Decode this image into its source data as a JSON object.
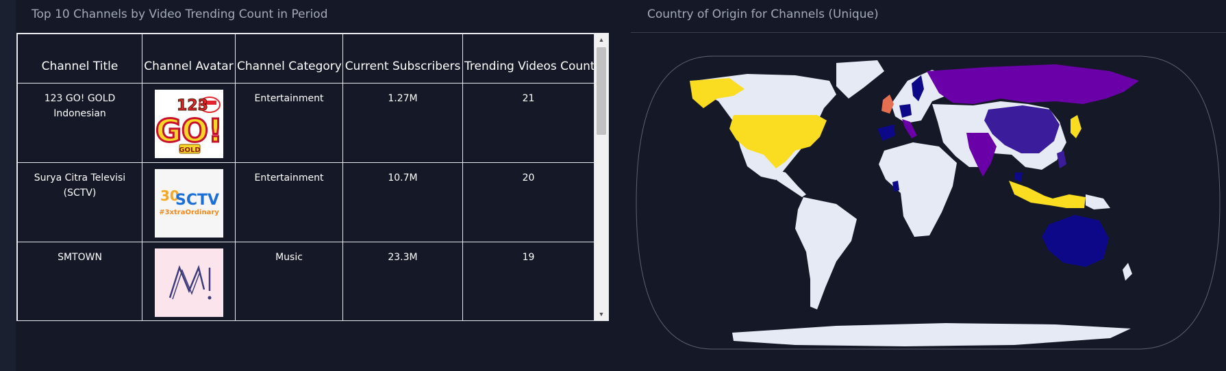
{
  "left_panel": {
    "title": "Top 10 Channels by Video Trending Count in Period",
    "columns": [
      "Channel Title",
      "Channel Avatar",
      "Channel Category",
      "Current Subscribers",
      "Trending Videos Count"
    ],
    "rows": [
      {
        "title": "123 GO! GOLD Indonesian",
        "category": "Entertainment",
        "subscribers": "1.27M",
        "trending": "21",
        "avatar": {
          "icon": "123-go-gold-logo",
          "text_top": "123",
          "text_main": "GO!",
          "text_badge": "GOLD",
          "colors": [
            "#f6d627",
            "#e4232c",
            "#ffffff"
          ]
        }
      },
      {
        "title": "Surya Citra Televisi (SCTV)",
        "category": "Entertainment",
        "subscribers": "10.7M",
        "trending": "20",
        "avatar": {
          "icon": "sctv-logo",
          "text_top": "30",
          "text_main": "SCTV",
          "text_sub": "#3xtraOrdinary",
          "colors": [
            "#f5a623",
            "#1d6fd8",
            "#ffffff"
          ]
        }
      },
      {
        "title": "SMTOWN",
        "category": "Music",
        "subscribers": "23.3M",
        "trending": "19",
        "avatar": {
          "icon": "smtown-logo",
          "colors": [
            "#fce4ec",
            "#3c3a78"
          ]
        }
      }
    ]
  },
  "right_panel": {
    "title": "Country of Origin for Channels (Unique)",
    "map": {
      "projection": "natural-earth",
      "colors": {
        "default_land": "#e6eaf4",
        "high": "#fadd21",
        "mid_high": "#f0f921",
        "mid": "#6a00a8",
        "mid_low": "#3b1d9c",
        "low": "#0d0887",
        "uk": "#e76f51",
        "ocean": "#151927",
        "frame": "#5c6170"
      },
      "highlighted_regions": [
        {
          "icon": "united-states-region",
          "level": "high"
        },
        {
          "icon": "alaska-region",
          "level": "high"
        },
        {
          "icon": "indonesia-region",
          "level": "high"
        },
        {
          "icon": "japan-region",
          "level": "high"
        },
        {
          "icon": "russia-region",
          "level": "mid"
        },
        {
          "icon": "china-region",
          "level": "mid_low"
        },
        {
          "icon": "india-region",
          "level": "mid"
        },
        {
          "icon": "australia-region",
          "level": "low"
        },
        {
          "icon": "united-kingdom-region",
          "level": "uk"
        },
        {
          "icon": "spain-region",
          "level": "low"
        },
        {
          "icon": "italy-region",
          "level": "mid"
        },
        {
          "icon": "germany-region",
          "level": "low"
        },
        {
          "icon": "sweden-region",
          "level": "low"
        },
        {
          "icon": "ghana-region",
          "level": "low"
        },
        {
          "icon": "philippines-region",
          "level": "mid_low"
        },
        {
          "icon": "malaysia-region",
          "level": "low"
        }
      ]
    }
  }
}
